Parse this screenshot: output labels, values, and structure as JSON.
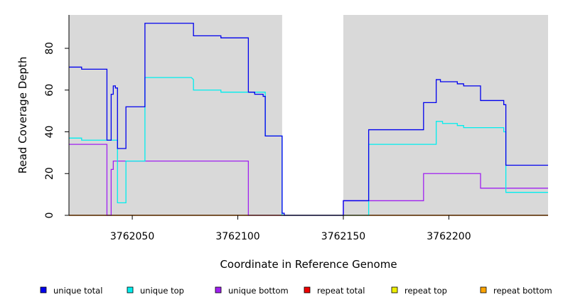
{
  "chart_data": {
    "type": "line",
    "title": "",
    "xlabel": "Coordinate in Reference Genome",
    "ylabel": "Read Coverage Depth",
    "xlim": [
      3762020,
      3762247
    ],
    "ylim": [
      0,
      96
    ],
    "x_ticks": [
      3762050,
      3762100,
      3762150,
      3762200
    ],
    "y_ticks": [
      0,
      20,
      40,
      60,
      80
    ],
    "x_tick_labels": [
      "3762050",
      "3762100",
      "3762150",
      "3762200"
    ],
    "y_tick_labels": [
      "0",
      "20",
      "40",
      "60",
      "80"
    ],
    "shaded_regions": [
      [
        3762020,
        3762121
      ],
      [
        3762150,
        3762247
      ]
    ],
    "grid": false,
    "legend_position": "bottom",
    "series": [
      {
        "name": "unique total",
        "color": "#0000ee",
        "points": [
          [
            3762020,
            71
          ],
          [
            3762026,
            71
          ],
          [
            3762026,
            70
          ],
          [
            3762038,
            70
          ],
          [
            3762038,
            36
          ],
          [
            3762040,
            36
          ],
          [
            3762040,
            58
          ],
          [
            3762041,
            58
          ],
          [
            3762041,
            62
          ],
          [
            3762042,
            62
          ],
          [
            3762042,
            61
          ],
          [
            3762043,
            61
          ],
          [
            3762043,
            32
          ],
          [
            3762047,
            32
          ],
          [
            3762047,
            52
          ],
          [
            3762056,
            52
          ],
          [
            3762056,
            92
          ],
          [
            3762079,
            92
          ],
          [
            3762079,
            86
          ],
          [
            3762092,
            86
          ],
          [
            3762092,
            85
          ],
          [
            3762105,
            85
          ],
          [
            3762105,
            59
          ],
          [
            3762108,
            59
          ],
          [
            3762108,
            58
          ],
          [
            3762112,
            58
          ],
          [
            3762112,
            57
          ],
          [
            3762113,
            57
          ],
          [
            3762113,
            38
          ],
          [
            3762121,
            38
          ],
          [
            3762121,
            1
          ],
          [
            3762122,
            1
          ],
          [
            3762122,
            0
          ],
          [
            3762150,
            0
          ],
          [
            3762150,
            7
          ],
          [
            3762162,
            7
          ],
          [
            3762162,
            41
          ],
          [
            3762188,
            41
          ],
          [
            3762188,
            54
          ],
          [
            3762194,
            54
          ],
          [
            3762194,
            65
          ],
          [
            3762196,
            65
          ],
          [
            3762196,
            64
          ],
          [
            3762204,
            64
          ],
          [
            3762204,
            63
          ],
          [
            3762207,
            63
          ],
          [
            3762207,
            62
          ],
          [
            3762215,
            62
          ],
          [
            3762215,
            55
          ],
          [
            3762226,
            55
          ],
          [
            3762226,
            53
          ],
          [
            3762227,
            53
          ],
          [
            3762227,
            24
          ],
          [
            3762247,
            24
          ]
        ]
      },
      {
        "name": "unique top",
        "color": "#00eeee",
        "points": [
          [
            3762020,
            37
          ],
          [
            3762026,
            37
          ],
          [
            3762026,
            36
          ],
          [
            3762043,
            36
          ],
          [
            3762043,
            6
          ],
          [
            3762047,
            6
          ],
          [
            3762047,
            26
          ],
          [
            3762056,
            26
          ],
          [
            3762056,
            66
          ],
          [
            3762078,
            66
          ],
          [
            3762079,
            65
          ],
          [
            3762079,
            60
          ],
          [
            3762092,
            60
          ],
          [
            3762092,
            59
          ],
          [
            3762113,
            59
          ],
          [
            3762113,
            38
          ],
          [
            3762121,
            38
          ],
          [
            3762121,
            0
          ],
          [
            3762162,
            0
          ],
          [
            3762162,
            34
          ],
          [
            3762194,
            34
          ],
          [
            3762194,
            45
          ],
          [
            3762197,
            45
          ],
          [
            3762197,
            44
          ],
          [
            3762204,
            44
          ],
          [
            3762204,
            43
          ],
          [
            3762207,
            43
          ],
          [
            3762207,
            42
          ],
          [
            3762226,
            42
          ],
          [
            3762226,
            40
          ],
          [
            3762227,
            40
          ],
          [
            3762227,
            11
          ],
          [
            3762247,
            11
          ]
        ]
      },
      {
        "name": "unique bottom",
        "color": "#a020f0",
        "points": [
          [
            3762020,
            34
          ],
          [
            3762038,
            34
          ],
          [
            3762038,
            0
          ],
          [
            3762040,
            0
          ],
          [
            3762040,
            22
          ],
          [
            3762041,
            22
          ],
          [
            3762041,
            26
          ],
          [
            3762105,
            26
          ],
          [
            3762105,
            0
          ],
          [
            3762150,
            0
          ],
          [
            3762150,
            7
          ],
          [
            3762188,
            7
          ],
          [
            3762188,
            20
          ],
          [
            3762215,
            20
          ],
          [
            3762215,
            13
          ],
          [
            3762247,
            13
          ]
        ]
      },
      {
        "name": "repeat total",
        "color": "#ee0000",
        "points": [
          [
            3762020,
            0
          ],
          [
            3762247,
            0
          ]
        ]
      },
      {
        "name": "repeat top",
        "color": "#eeee00",
        "points": [
          [
            3762020,
            0
          ],
          [
            3762247,
            0
          ]
        ]
      },
      {
        "name": "repeat bottom",
        "color": "#ffa500",
        "points": [
          [
            3762020,
            0
          ],
          [
            3762247,
            0
          ]
        ]
      }
    ]
  }
}
